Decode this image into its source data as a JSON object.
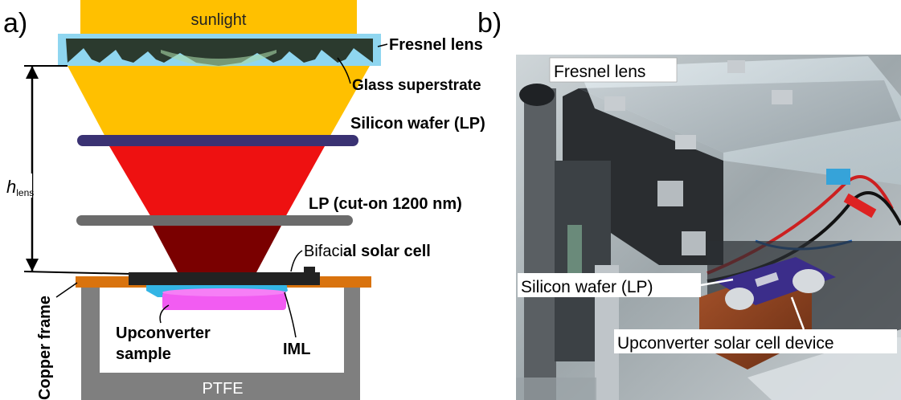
{
  "panel_a": {
    "label": "a)",
    "sunlight": "sunlight",
    "fresnel_lens": "Fresnel lens",
    "glass_superstrate": "Glass superstrate",
    "silicon_wafer": "Silicon wafer (LP)",
    "h_lens_main": "h",
    "h_lens_sub": "lens",
    "lp_filter": "LP (cut-on 1200 nm)",
    "bifacial_prefix": "Bifaci",
    "bifacial_suffix": "al solar cell",
    "copper_frame": "Copper frame",
    "upconverter_line1": "Upconverter",
    "upconverter_line2": "sample",
    "iml": "IML",
    "ptfe": "PTFE"
  },
  "panel_b": {
    "label": "b)",
    "fresnel_lens": "Fresnel lens",
    "silicon_wafer": "Silicon wafer (LP)",
    "device": "Upconverter solar cell device"
  },
  "colors": {
    "sunlight": "#FFC000",
    "red_beam": "#EE1111",
    "dark_red_beam": "#7A0000",
    "glass": "#8FD6F0",
    "lens": "#2B3A2E",
    "lens_light": "#A8D8A8",
    "wafer": "#3A3273",
    "lp": "#6B6B6B",
    "copper": "#D9730E",
    "ptfe": "#7F7F7F",
    "cell": "#222222",
    "iml": "#33B5E5",
    "sample": "#F25CF2"
  }
}
